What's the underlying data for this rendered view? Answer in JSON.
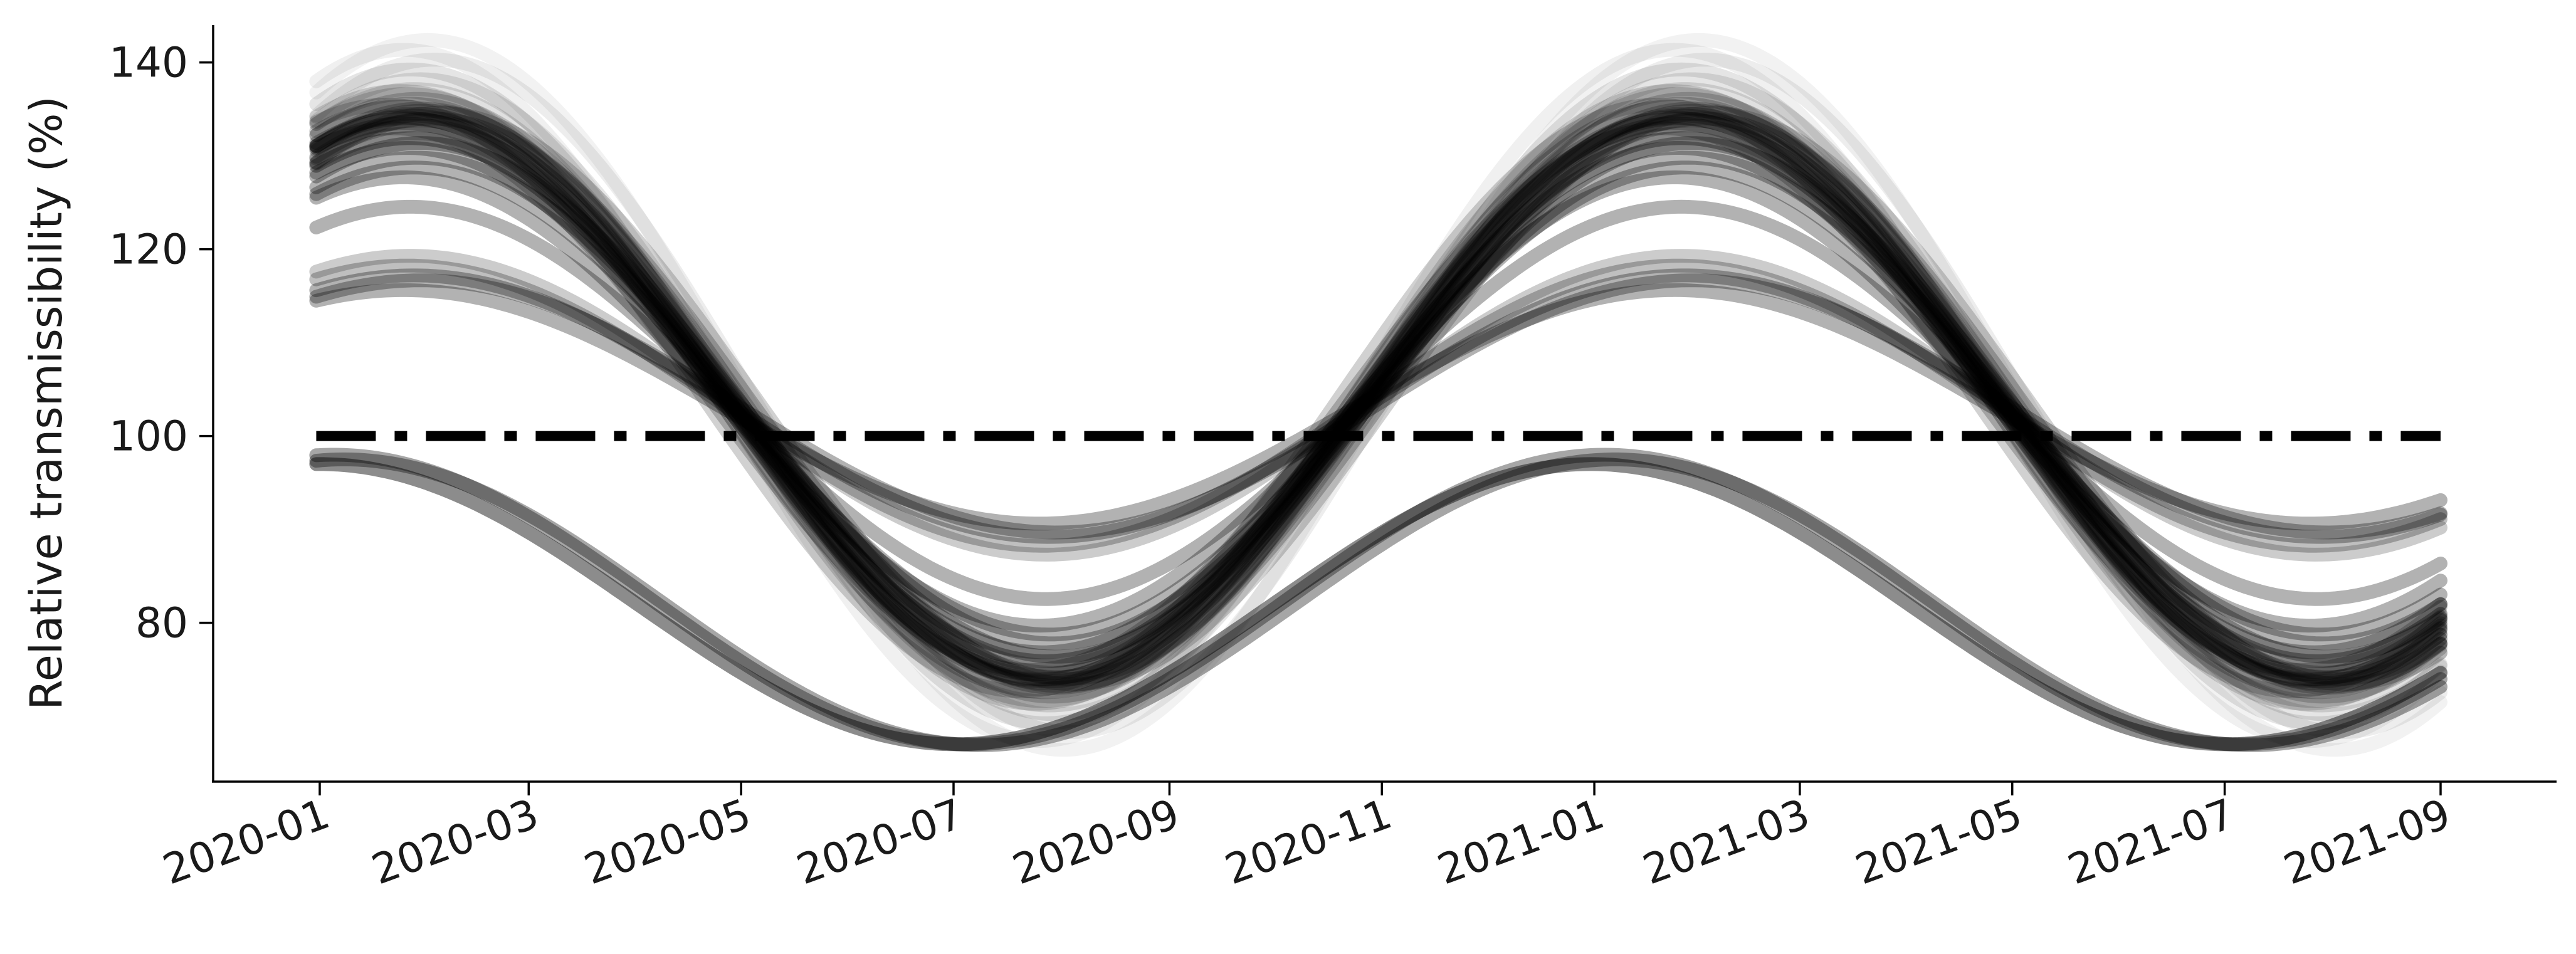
{
  "chart_data": {
    "type": "line",
    "title": "",
    "xlabel": "",
    "ylabel": "Relative transmissibility (%)",
    "x_range": [
      "2019-12-31",
      "2021-09-01"
    ],
    "x_ticks": [
      "2020-01",
      "2020-03",
      "2020-05",
      "2020-07",
      "2020-09",
      "2020-11",
      "2021-01",
      "2021-03",
      "2021-05",
      "2021-07",
      "2021-09"
    ],
    "ylim": [
      63,
      144
    ],
    "y_ticks": [
      80,
      100,
      120,
      140
    ],
    "grid": false,
    "legend": "none",
    "line_color": "#000000",
    "reference_line": {
      "value": 100,
      "style": "dash-dot",
      "color": "#000000"
    },
    "curve_model": "sinusoid with 365-day period peaking near 2020-01-27 / 2021-01-27",
    "series": [
      {
        "amplitude": 30,
        "peak_date": "2020-01-26",
        "opacity": 0.25
      },
      {
        "amplitude": 30.5,
        "peak_date": "2020-01-28",
        "opacity": 0.22
      },
      {
        "amplitude": 31,
        "peak_date": "2020-01-30",
        "opacity": 0.2
      },
      {
        "amplitude": 29.5,
        "peak_date": "2020-01-25",
        "opacity": 0.25
      },
      {
        "amplitude": 31.5,
        "peak_date": "2020-01-27",
        "opacity": 0.2
      },
      {
        "amplitude": 30,
        "peak_date": "2020-02-02",
        "opacity": 0.22
      },
      {
        "amplitude": 32,
        "peak_date": "2020-01-29",
        "opacity": 0.18
      },
      {
        "amplitude": 29,
        "peak_date": "2020-01-22",
        "opacity": 0.22
      },
      {
        "amplitude": 30.8,
        "peak_date": "2020-01-31",
        "opacity": 0.2
      },
      {
        "amplitude": 31.2,
        "peak_date": "2020-01-24",
        "opacity": 0.2
      },
      {
        "amplitude": 29.8,
        "peak_date": "2020-01-30",
        "opacity": 0.22
      },
      {
        "amplitude": 30.3,
        "peak_date": "2020-01-27",
        "opacity": 0.25
      },
      {
        "amplitude": 32.5,
        "peak_date": "2020-01-26",
        "opacity": 0.15
      },
      {
        "amplitude": 28.5,
        "peak_date": "2020-01-28",
        "opacity": 0.2
      },
      {
        "amplitude": 30.6,
        "peak_date": "2020-02-04",
        "opacity": 0.18
      },
      {
        "amplitude": 31.4,
        "peak_date": "2020-01-20",
        "opacity": 0.18
      },
      {
        "amplitude": 30.1,
        "peak_date": "2020-01-25",
        "opacity": 0.25
      },
      {
        "amplitude": 29.3,
        "peak_date": "2020-01-29",
        "opacity": 0.22
      },
      {
        "amplitude": 33,
        "peak_date": "2020-01-28",
        "opacity": 0.12
      },
      {
        "amplitude": 34,
        "peak_date": "2020-01-30",
        "opacity": 0.1
      },
      {
        "amplitude": 35,
        "peak_date": "2020-01-27",
        "opacity": 0.1
      },
      {
        "amplitude": 36,
        "peak_date": "2020-02-03",
        "opacity": 0.07
      },
      {
        "amplitude": 37,
        "peak_date": "2020-01-25",
        "opacity": 0.06
      },
      {
        "amplitude": 38,
        "peak_date": "2020-02-01",
        "opacity": 0.05
      },
      {
        "amplitude": 32.8,
        "peak_date": "2020-01-24",
        "opacity": 0.14
      },
      {
        "amplitude": 28,
        "peak_date": "2020-01-27",
        "opacity": 0.35
      },
      {
        "amplitude": 27.5,
        "peak_date": "2020-01-30",
        "opacity": 0.3
      },
      {
        "amplitude": 27,
        "peak_date": "2020-01-26",
        "opacity": 0.3
      },
      {
        "amplitude": 26,
        "peak_date": "2020-01-29",
        "opacity": 0.3
      },
      {
        "amplitude": 25,
        "peak_date": "2020-01-28",
        "opacity": 0.3
      },
      {
        "amplitude": 24,
        "peak_date": "2020-01-25",
        "opacity": 0.3
      },
      {
        "amplitude": 21,
        "peak_date": "2020-01-27",
        "opacity": 0.3
      },
      {
        "amplitude": 16,
        "peak_date": "2020-01-27",
        "opacity": 0.2
      },
      {
        "amplitude": 14,
        "peak_date": "2020-01-28",
        "opacity": 0.3
      },
      {
        "amplitude": 12.5,
        "peak_date": "2020-01-25",
        "opacity": 0.3
      },
      {
        "amplitude": 13.5,
        "peak_date": "2020-01-30",
        "opacity": 0.3
      },
      {
        "amplitude": 15,
        "peak_date": "2020-01-26",
        "opacity": 0.25
      },
      {
        "amplitude": 2,
        "peak_date": "2020-01-05",
        "opacity": 0.35,
        "amplitude_override": 15.5,
        "center": 82.5
      },
      {
        "amplitude": 1,
        "peak_date": "2020-01-01",
        "opacity": 0.45,
        "amplitude_override": 15,
        "center": 82
      },
      {
        "amplitude": 0.5,
        "peak_date": "2020-01-08",
        "opacity": 0.35,
        "amplitude_override": 15.3,
        "center": 82.2
      }
    ]
  }
}
